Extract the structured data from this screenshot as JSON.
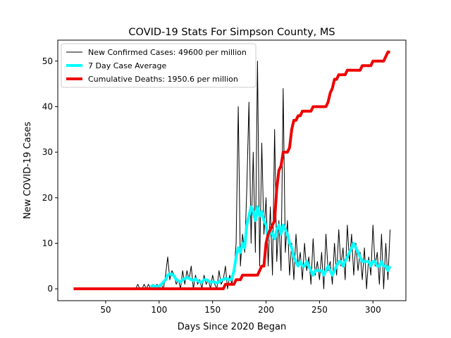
{
  "chart_data": {
    "type": "line",
    "title": "COVID-19 Stats For Simpson County, MS",
    "xlabel": "Days Since 2020 Began",
    "ylabel": "New COVID-19 Cases",
    "xlim": [
      5.2,
      330.8
    ],
    "ylim": [
      -2.6,
      54.6
    ],
    "xticks": [
      50,
      100,
      150,
      200,
      250,
      300
    ],
    "yticks": [
      0,
      10,
      20,
      30,
      40,
      50
    ],
    "legend": "upper left",
    "x": [
      20,
      22,
      24,
      26,
      28,
      30,
      32,
      34,
      36,
      38,
      40,
      42,
      44,
      46,
      48,
      50,
      52,
      54,
      56,
      58,
      60,
      62,
      64,
      66,
      68,
      70,
      72,
      74,
      76,
      78,
      80,
      82,
      84,
      86,
      88,
      90,
      92,
      94,
      96,
      98,
      100,
      102,
      104,
      106,
      108,
      110,
      112,
      114,
      116,
      118,
      120,
      122,
      124,
      126,
      128,
      130,
      132,
      134,
      136,
      138,
      140,
      142,
      144,
      146,
      148,
      150,
      152,
      154,
      156,
      158,
      160,
      162,
      164,
      166,
      168,
      170,
      172,
      174,
      176,
      178,
      180,
      182,
      184,
      186,
      188,
      190,
      192,
      194,
      196,
      198,
      200,
      202,
      204,
      206,
      208,
      210,
      212,
      214,
      216,
      218,
      220,
      222,
      224,
      226,
      228,
      230,
      232,
      234,
      236,
      238,
      240,
      242,
      244,
      246,
      248,
      250,
      252,
      254,
      256,
      258,
      260,
      262,
      264,
      266,
      268,
      270,
      272,
      274,
      276,
      278,
      280,
      282,
      284,
      286,
      288,
      290,
      292,
      294,
      296,
      298,
      300,
      302,
      304,
      306,
      308,
      310,
      312,
      314,
      316
    ],
    "series": [
      {
        "name": "New Confirmed Cases: 49600 per million",
        "color": "#000000",
        "width": 1,
        "values": [
          null,
          null,
          null,
          null,
          null,
          null,
          null,
          null,
          null,
          null,
          null,
          null,
          null,
          null,
          null,
          null,
          null,
          null,
          null,
          null,
          null,
          null,
          null,
          null,
          null,
          null,
          null,
          null,
          null,
          0,
          1,
          0,
          0,
          1,
          0,
          1,
          0,
          1,
          0,
          1,
          0,
          1,
          0,
          3,
          7,
          2,
          4,
          3,
          1,
          2,
          0,
          4,
          1,
          4,
          2,
          5,
          0,
          3,
          1,
          2,
          0,
          3,
          1,
          2,
          0,
          3,
          1,
          0,
          4,
          1,
          2,
          5,
          0,
          3,
          1,
          4,
          10,
          40,
          5,
          12,
          8,
          22,
          41,
          10,
          30,
          8,
          50,
          5,
          32,
          12,
          20,
          5,
          18,
          3,
          35,
          6,
          15,
          4,
          44,
          8,
          15,
          3,
          10,
          2,
          12,
          5,
          8,
          2,
          10,
          4,
          7,
          1,
          11,
          3,
          6,
          2,
          8,
          0,
          12,
          4,
          6,
          1,
          10,
          3,
          13,
          5,
          9,
          2,
          14,
          6,
          12,
          3,
          10,
          4,
          8,
          2,
          9,
          0,
          7,
          3,
          14,
          5,
          8,
          1,
          12,
          0,
          10,
          2,
          13
        ]
      },
      {
        "name": "7 Day Case Average",
        "color": "#00ffff",
        "width": 4,
        "values": [
          null,
          null,
          null,
          null,
          null,
          null,
          null,
          null,
          null,
          null,
          null,
          null,
          null,
          null,
          null,
          null,
          null,
          null,
          null,
          null,
          null,
          null,
          null,
          null,
          null,
          null,
          null,
          null,
          null,
          null,
          null,
          null,
          null,
          null,
          null,
          null,
          0.5,
          0.7,
          0.6,
          0.5,
          0.6,
          1,
          1.5,
          2,
          3,
          3.3,
          3.2,
          2.8,
          2,
          1.8,
          1.5,
          2,
          2.2,
          2.5,
          2.3,
          2,
          1.8,
          2.2,
          1.8,
          1.5,
          1.5,
          2,
          2,
          1.8,
          1.5,
          1.5,
          1.5,
          1.3,
          1.5,
          2,
          2,
          2.3,
          2.2,
          2,
          2.2,
          4,
          7,
          9,
          8,
          10,
          9,
          14,
          16,
          18,
          17,
          15,
          18,
          16,
          17,
          15,
          14,
          11,
          13,
          12,
          11,
          13,
          14,
          12,
          14,
          13,
          12,
          10,
          9,
          7,
          6,
          5,
          6,
          5,
          5,
          6,
          5,
          4,
          3,
          4,
          4,
          4,
          4,
          3,
          4,
          5,
          4,
          3,
          4,
          5,
          6,
          6,
          5,
          6,
          7,
          8,
          9,
          10,
          9,
          8,
          7,
          6,
          6,
          6,
          6,
          5,
          6,
          6,
          5,
          5,
          6,
          5,
          5,
          4,
          5
        ]
      },
      {
        "name": "Cumulative Deaths: 1950.6 per million",
        "color": "#ee0000",
        "width": 4,
        "values": [
          0,
          0,
          0,
          0,
          0,
          0,
          0,
          0,
          0,
          0,
          0,
          0,
          0,
          0,
          0,
          0,
          0,
          0,
          0,
          0,
          0,
          0,
          0,
          0,
          0,
          0,
          0,
          0,
          0,
          0,
          0,
          0,
          0,
          0,
          0,
          0,
          0,
          0,
          0,
          0,
          0,
          0,
          0,
          0,
          0,
          0,
          0,
          0,
          0,
          0,
          0,
          0,
          0,
          0,
          0,
          0,
          0,
          0,
          0,
          0,
          0,
          0,
          0,
          0,
          0,
          0,
          0,
          0,
          0,
          0,
          0,
          1,
          1,
          1,
          1,
          1,
          2,
          2,
          2,
          3,
          3,
          3,
          3,
          3,
          3,
          3,
          3,
          4,
          5,
          5,
          10,
          12,
          13,
          14,
          15,
          22,
          26,
          27,
          30,
          30,
          30,
          31,
          35,
          37,
          37,
          38,
          38,
          39,
          39,
          39,
          39,
          39,
          40,
          40,
          40,
          40,
          40,
          40,
          40,
          41,
          43,
          44,
          46,
          46,
          47,
          47,
          47,
          47,
          48,
          48,
          48,
          48,
          48,
          48,
          48,
          49,
          49,
          49,
          49,
          49,
          50,
          50,
          50,
          50,
          50,
          50,
          51,
          52,
          52
        ]
      }
    ]
  }
}
